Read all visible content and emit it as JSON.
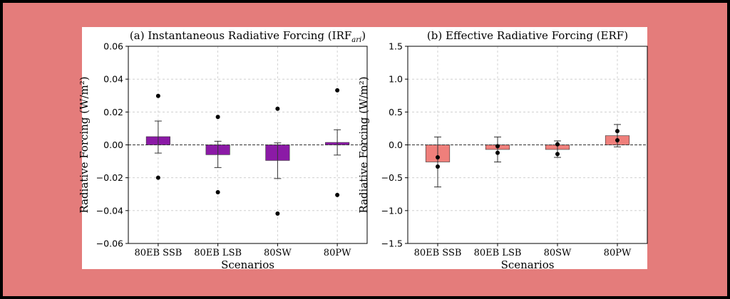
{
  "colors": {
    "background": "#e47c7b",
    "panel": "#ffffff",
    "bar_left": "#8b1aa6",
    "bar_right": "#ef7f7b",
    "point": "#000000"
  },
  "chart_data": [
    {
      "type": "bar",
      "title_main": "(a) Instantaneous Radiative Forcing (IRF",
      "title_sub": "ari",
      "title_end": ")",
      "xlabel": "Scenarios",
      "ylabel": "Radiative Forcing (W/m²)",
      "categories": [
        "80EB SSB",
        "80EB LSB",
        "80SW",
        "80PW"
      ],
      "values": [
        0.005,
        -0.006,
        -0.0095,
        0.0015
      ],
      "error_low": [
        -0.005,
        -0.0138,
        -0.0205,
        -0.0062
      ],
      "error_high": [
        0.0145,
        0.0022,
        0.0012,
        0.0092
      ],
      "points": [
        [
          0.0298,
          -0.02
        ],
        [
          0.017,
          -0.0288
        ],
        [
          0.022,
          -0.0418
        ],
        [
          0.0332,
          -0.0305
        ]
      ],
      "ylim": [
        -0.06,
        0.06
      ],
      "yticks": [
        "−0.06",
        "−0.04",
        "−0.02",
        "0.00",
        "0.02",
        "0.04",
        "0.06"
      ],
      "ytick_values": [
        -0.06,
        -0.04,
        -0.02,
        0.0,
        0.02,
        0.04,
        0.06
      ],
      "grid": true
    },
    {
      "type": "bar",
      "title_main": "(b) Effective Radiative Forcing (ERF)",
      "title_sub": "",
      "title_end": "",
      "xlabel": "Scenarios",
      "ylabel": "Radiative Forcing (W/m²)",
      "categories": [
        "80EB SSB",
        "80EB LSB",
        "80SW",
        "80PW"
      ],
      "values": [
        -0.26,
        -0.07,
        -0.07,
        0.14
      ],
      "error_low": [
        -0.64,
        -0.26,
        -0.19,
        -0.03
      ],
      "error_high": [
        0.12,
        0.12,
        0.06,
        0.31
      ],
      "points": [
        [
          -0.19,
          -0.33
        ],
        [
          -0.02,
          -0.12
        ],
        [
          0.01,
          -0.14
        ],
        [
          0.21,
          0.07
        ]
      ],
      "ylim": [
        -1.5,
        1.5
      ],
      "yticks": [
        "−1.5",
        "−1.0",
        "−0.5",
        "0.0",
        "0.5",
        "1.0",
        "1.5"
      ],
      "ytick_values": [
        -1.5,
        -1.0,
        -0.5,
        0.0,
        0.5,
        1.0,
        1.5
      ],
      "grid": true
    }
  ]
}
